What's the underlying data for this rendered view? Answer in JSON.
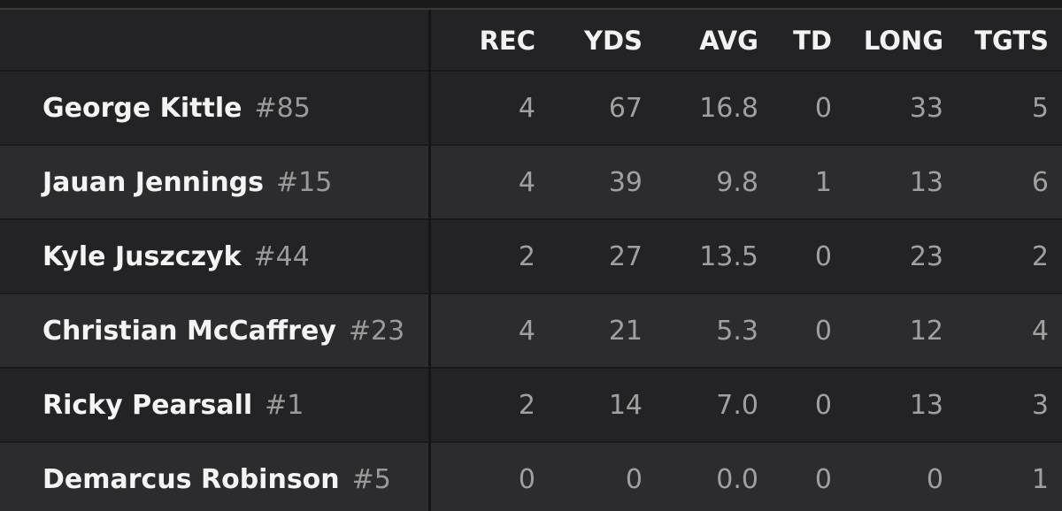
{
  "table": {
    "columns": [
      "REC",
      "YDS",
      "AVG",
      "TD",
      "LONG",
      "TGTS"
    ],
    "rows": [
      {
        "name": "George Kittle",
        "number": "#85",
        "stats": [
          "4",
          "67",
          "16.8",
          "0",
          "33",
          "5"
        ]
      },
      {
        "name": "Jauan Jennings",
        "number": "#15",
        "stats": [
          "4",
          "39",
          "9.8",
          "1",
          "13",
          "6"
        ]
      },
      {
        "name": "Kyle Juszczyk",
        "number": "#44",
        "stats": [
          "2",
          "27",
          "13.5",
          "0",
          "23",
          "2"
        ]
      },
      {
        "name": "Christian McCaffrey",
        "number": "#23",
        "stats": [
          "4",
          "21",
          "5.3",
          "0",
          "12",
          "4"
        ]
      },
      {
        "name": "Ricky Pearsall",
        "number": "#1",
        "stats": [
          "2",
          "14",
          "7.0",
          "0",
          "13",
          "3"
        ]
      },
      {
        "name": "Demarcus Robinson",
        "number": "#5",
        "stats": [
          "0",
          "0",
          "0.0",
          "0",
          "0",
          "1"
        ]
      }
    ]
  }
}
